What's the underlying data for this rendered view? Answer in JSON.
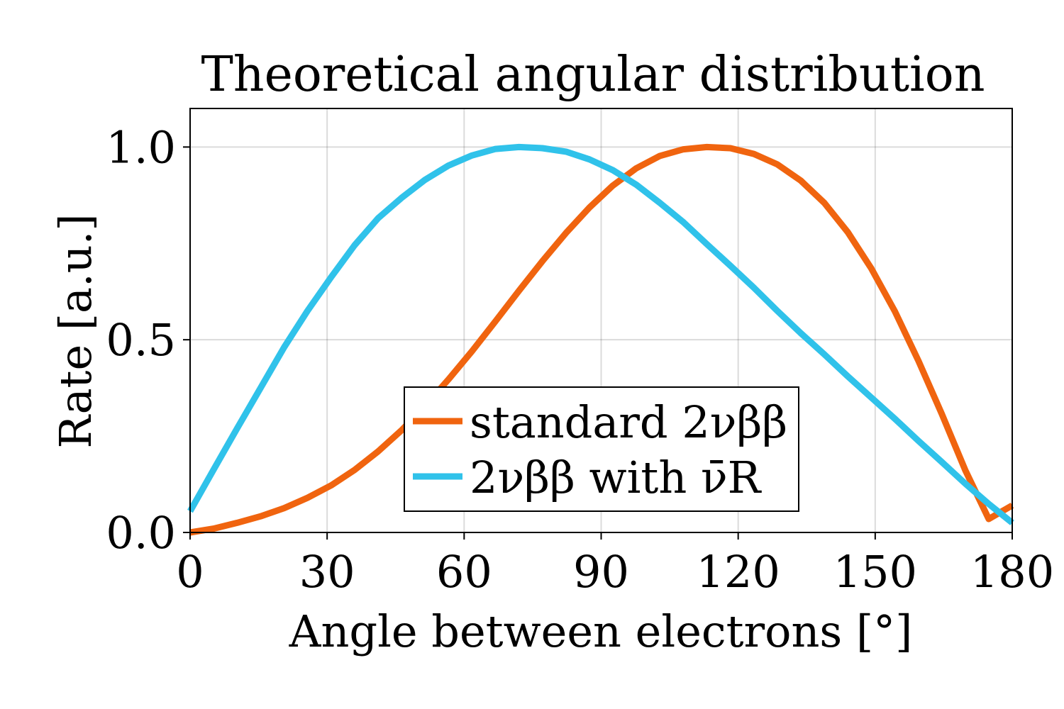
{
  "chart_data": {
    "type": "line",
    "title": "Theoretical angular distribution",
    "xlabel": "Angle between electrons [°]",
    "ylabel": "Rate [a.u.]",
    "xlim": [
      0,
      180
    ],
    "ylim": [
      0,
      1.1
    ],
    "xticks": [
      0,
      30,
      60,
      90,
      120,
      150,
      180
    ],
    "yticks": [
      0.0,
      0.5,
      1.0
    ],
    "xtick_labels": [
      "0",
      "30",
      "60",
      "90",
      "120",
      "150",
      "180"
    ],
    "ytick_labels": [
      "0.0",
      "0.5",
      "1.0"
    ],
    "grid": true,
    "legend_position": "bottom-center",
    "x": [
      0,
      5.14,
      10.29,
      15.43,
      20.57,
      25.71,
      30.86,
      36,
      41.14,
      46.29,
      51.43,
      56.57,
      61.71,
      66.86,
      72,
      77.14,
      82.29,
      87.43,
      92.57,
      97.71,
      102.86,
      108,
      113.14,
      118.29,
      123.43,
      128.57,
      133.71,
      138.86,
      144,
      149.14,
      154.29,
      159.43,
      164.57,
      169.71,
      174.86,
      180
    ],
    "series": [
      {
        "name": "standard 2νββ",
        "color": "#f0640f",
        "values": [
          0.0,
          0.01,
          0.025,
          0.042,
          0.063,
          0.09,
          0.122,
          0.162,
          0.21,
          0.265,
          0.328,
          0.397,
          0.47,
          0.548,
          0.627,
          0.704,
          0.777,
          0.843,
          0.9,
          0.945,
          0.977,
          0.994,
          1.0,
          0.997,
          0.982,
          0.955,
          0.913,
          0.855,
          0.779,
          0.685,
          0.574,
          0.446,
          0.308,
          0.162,
          0.035,
          0.07
        ]
      },
      {
        "name": "2νββ with ν̄R",
        "color": "#30c2ea",
        "values": [
          0.055,
          0.163,
          0.27,
          0.375,
          0.48,
          0.575,
          0.662,
          0.745,
          0.815,
          0.868,
          0.915,
          0.952,
          0.978,
          0.995,
          1.0,
          0.997,
          0.988,
          0.968,
          0.94,
          0.902,
          0.855,
          0.805,
          0.748,
          0.692,
          0.635,
          0.575,
          0.517,
          0.462,
          0.405,
          0.35,
          0.295,
          0.238,
          0.183,
          0.127,
          0.074,
          0.025
        ]
      }
    ]
  }
}
